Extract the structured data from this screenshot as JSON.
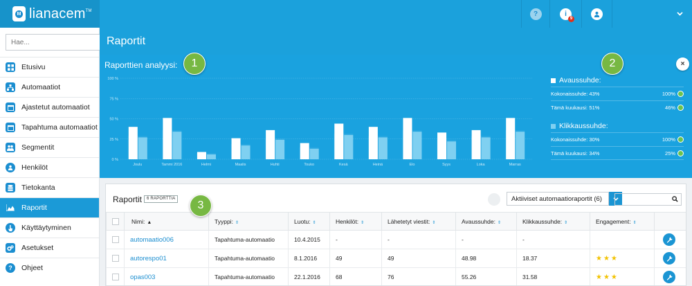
{
  "app": {
    "logo_text": "lianacem",
    "logo_mark": "TM",
    "logo_badge": "M"
  },
  "topbar": {
    "help_label": "?",
    "info_label": "i",
    "notification_count": "9"
  },
  "sidebar": {
    "search_placeholder": "Hae...",
    "items": [
      {
        "label": "Etusivu",
        "icon": "grid-icon"
      },
      {
        "label": "Automaatiot",
        "icon": "hierarchy-icon"
      },
      {
        "label": "Ajastetut automaatiot",
        "icon": "calendar-icon"
      },
      {
        "label": "Tapahtuma automaatiot",
        "icon": "calendar-icon"
      },
      {
        "label": "Segmentit",
        "icon": "users-icon"
      },
      {
        "label": "Henkilöt",
        "icon": "user-icon"
      },
      {
        "label": "Tietokanta",
        "icon": "database-icon"
      },
      {
        "label": "Raportit",
        "icon": "area-chart-icon",
        "active": true
      },
      {
        "label": "Käyttäytyminen",
        "icon": "pointer-icon"
      },
      {
        "label": "Asetukset",
        "icon": "cogs-icon"
      },
      {
        "label": "Ohjeet",
        "icon": "question-icon"
      }
    ]
  },
  "page": {
    "title": "Raportit"
  },
  "analysis": {
    "title": "Raporttien analyysi:",
    "close_label": "×",
    "open_rate": {
      "heading": "Avaussuhde:",
      "total_label": "Kokonaissuhde:",
      "total_value": "43%",
      "total_pct": "100%",
      "month_label": "Tämä kuukausi:",
      "month_value": "51%",
      "month_pct": "46%"
    },
    "click_rate": {
      "heading": "Klikkaussuhde:",
      "total_label": "Kokonaissuhde:",
      "total_value": "30%",
      "total_pct": "100%",
      "month_label": "Tämä kuukausi:",
      "month_value": "34%",
      "month_pct": "25%"
    }
  },
  "chart_data": {
    "type": "bar",
    "categories": [
      "Joulu",
      "Tammi 2016",
      "Helmi",
      "Maalis",
      "Huhti",
      "Touko",
      "Kesä",
      "Heinä",
      "Elo",
      "Syys",
      "Loka",
      "Marras"
    ],
    "series": [
      {
        "name": "Avaussuhde",
        "values": [
          40,
          51,
          9,
          26,
          36,
          20,
          44,
          40,
          51,
          33,
          36,
          51
        ]
      },
      {
        "name": "Klikkaussuhde",
        "values": [
          27,
          34,
          6,
          17,
          24,
          13,
          30,
          27,
          34,
          22,
          27,
          34
        ]
      }
    ],
    "yticks": [
      "0 %",
      "25 %",
      "50 %",
      "75 %",
      "100 %"
    ],
    "ylim": [
      0,
      100
    ],
    "colors": {
      "open": "#ffffff",
      "click": "#7fd0f1"
    }
  },
  "callouts": [
    "1",
    "2",
    "3"
  ],
  "reports": {
    "title": "Raportit",
    "count_badge": "6 RAPORTTIA",
    "filter_value": "Aktiiviset automaatioraportit (6)",
    "columns": [
      "Nimi:",
      "Tyyppi:",
      "Luotu:",
      "Henkilöt:",
      "Lähetetyt viestit:",
      "Avaussuhde:",
      "Klikkaussuhde:",
      "Engagement:"
    ],
    "rows": [
      {
        "name": "automaatio006",
        "type": "Tapahtuma-automaatio",
        "created": "10.4.2015",
        "persons": "-",
        "sent": "-",
        "open": "-",
        "click": "-",
        "stars": ""
      },
      {
        "name": "autorespo01",
        "type": "Tapahtuma-automaatio",
        "created": "8.1.2016",
        "persons": "49",
        "sent": "49",
        "open": "48.98",
        "click": "18.37",
        "stars": "★★★"
      },
      {
        "name": "opas003",
        "type": "Tapahtuma-automaatio",
        "created": "22.1.2016",
        "persons": "68",
        "sent": "76",
        "open": "55.26",
        "click": "31.58",
        "stars": "★★★"
      }
    ]
  }
}
